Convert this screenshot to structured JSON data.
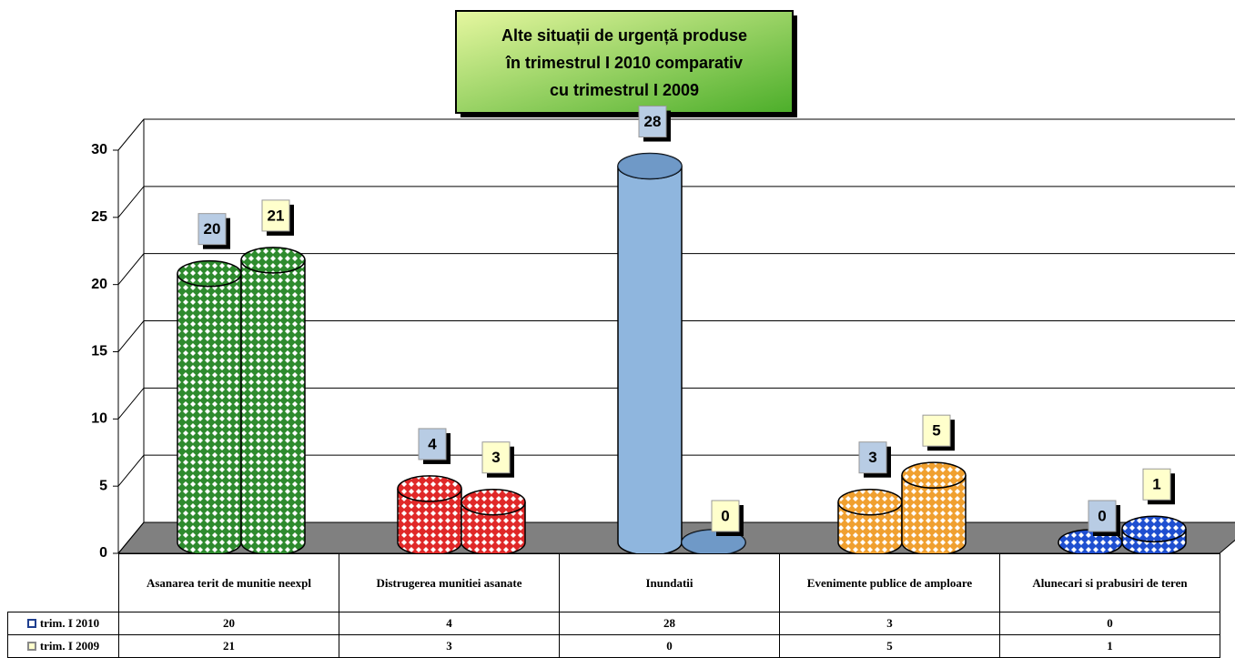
{
  "chart_data": {
    "type": "bar3d",
    "title": [
      "Alte situații de urgență produse",
      "în  trimestrul I 2010 comparativ",
      "cu trimestrul I 2009"
    ],
    "categories": [
      "Asanarea terit de munitie neexpl",
      "Distrugerea munitiei asanate",
      "Inundatii",
      "Evenimente publice de amploare",
      "Alunecari si prabusiri de teren"
    ],
    "category_colors": [
      "#2e8b2e",
      "#e02828",
      "#8fb6de",
      "#f0a030",
      "#1f4fd0"
    ],
    "series": [
      {
        "name": "trim. I 2010",
        "color": "#1f3f8f",
        "label_color": "#b8cce4",
        "values": [
          20,
          4,
          28,
          3,
          0
        ]
      },
      {
        "name": "trim. I 2009",
        "color": "#ffffcc",
        "label_color": "#ffffcc",
        "values": [
          21,
          3,
          0,
          5,
          1
        ]
      }
    ],
    "ylim": [
      0,
      30
    ],
    "yticks": [
      0,
      5,
      10,
      15,
      20,
      25,
      30
    ],
    "grid": true
  }
}
